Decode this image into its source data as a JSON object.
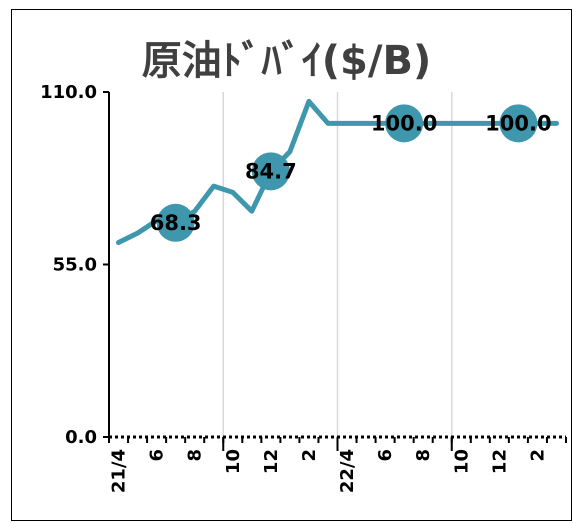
{
  "chart_data": {
    "type": "line",
    "title": "原油ﾄﾞﾊﾞｲ($/B)",
    "xlabel": "",
    "ylabel": "",
    "ylim": [
      0,
      110
    ],
    "grid": {
      "x_major": true,
      "y": false
    },
    "legend": "none",
    "colors": {
      "line": "#3f97ad",
      "marker": "#3f97ad",
      "axis": "#000000",
      "grid": "#d9d9d9",
      "title": "#404040"
    },
    "y_ticks": [
      {
        "value": 0,
        "label": "0.0"
      },
      {
        "value": 55,
        "label": "55.0"
      },
      {
        "value": 110,
        "label": "110.0"
      }
    ],
    "x_ticks": [
      {
        "index": 0,
        "label": "21/4"
      },
      {
        "index": 2,
        "label": "6"
      },
      {
        "index": 4,
        "label": "8"
      },
      {
        "index": 6,
        "label": "10"
      },
      {
        "index": 8,
        "label": "12"
      },
      {
        "index": 10,
        "label": "2"
      },
      {
        "index": 12,
        "label": "22/4"
      },
      {
        "index": 14,
        "label": "6"
      },
      {
        "index": 16,
        "label": "8"
      },
      {
        "index": 18,
        "label": "10"
      },
      {
        "index": 20,
        "label": "12"
      },
      {
        "index": 22,
        "label": "2"
      }
    ],
    "x_major_gridlines": [
      6,
      12,
      18
    ],
    "series": [
      {
        "values": [
          62,
          65,
          69,
          68.3,
          72,
          80,
          78,
          72,
          84.7,
          91,
          107,
          100,
          100,
          100,
          100,
          100,
          100,
          100,
          100,
          100,
          100,
          100,
          100,
          100
        ],
        "markers": [
          {
            "index": 3,
            "label": "68.3"
          },
          {
            "index": 8,
            "label": "84.7"
          },
          {
            "index": 15,
            "label": "100.0"
          },
          {
            "index": 21,
            "label": "100.0"
          }
        ]
      }
    ]
  }
}
